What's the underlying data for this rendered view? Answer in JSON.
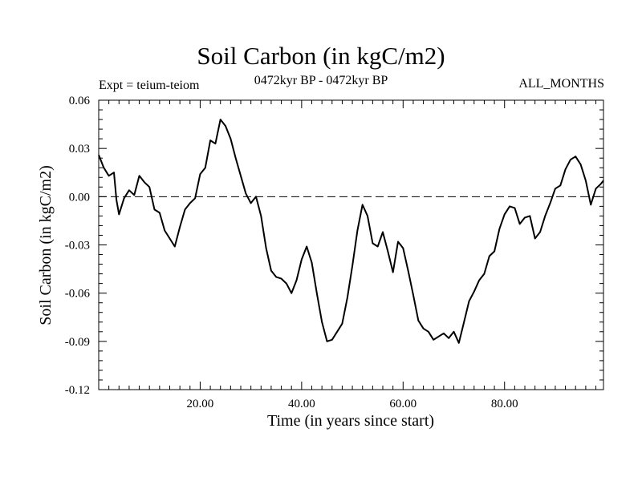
{
  "header": {
    "expt": "Expt = teium-teiom",
    "period": "0472kyr BP - 0472kyr BP",
    "months": "ALL_MONTHS"
  },
  "chart_data": {
    "type": "line",
    "title": "Soil Carbon (in kgC/m2)",
    "xlabel": "Time (in years since start)",
    "ylabel": "Soil Carbon (in kgC/m2)",
    "xlim": [
      0,
      99.5
    ],
    "ylim": [
      -0.12,
      0.06
    ],
    "x_ticks": [
      20,
      40,
      60,
      80
    ],
    "x_tick_labels": [
      "20.00",
      "40.00",
      "60.00",
      "80.00"
    ],
    "y_ticks": [
      0.06,
      0.03,
      0.0,
      -0.03,
      -0.06,
      -0.09,
      -0.12
    ],
    "y_tick_labels": [
      "0.06",
      "0.03",
      "0.00",
      "-0.03",
      "-0.06",
      "-0.09",
      "-0.12"
    ],
    "reference_line": 0.0,
    "grid": false,
    "series": [
      {
        "name": "Soil Carbon",
        "x": [
          0,
          1,
          2,
          3,
          3.5,
          4,
          5,
          6,
          7,
          8,
          9,
          10,
          11,
          12,
          13,
          14,
          15,
          16,
          17,
          18,
          19,
          20,
          21,
          22,
          23,
          24,
          25,
          26,
          27,
          28,
          29,
          30,
          31,
          32,
          33,
          34,
          35,
          36,
          37,
          38,
          39,
          40,
          41,
          42,
          43,
          44,
          45,
          46,
          47,
          48,
          49,
          50,
          51,
          52,
          53,
          54,
          55,
          56,
          57,
          58,
          59,
          60,
          61,
          62,
          63,
          64,
          65,
          66,
          67,
          68,
          69,
          70,
          71,
          72,
          73,
          74,
          75,
          76,
          77,
          78,
          79,
          80,
          81,
          82,
          83,
          84,
          85,
          86,
          87,
          88,
          89,
          90,
          91,
          92,
          93,
          94,
          95,
          96,
          97,
          98,
          99,
          99.5
        ],
        "values": [
          0.026,
          0.018,
          0.013,
          0.015,
          -0.002,
          -0.011,
          -0.001,
          0.004,
          0.001,
          0.013,
          0.009,
          0.006,
          -0.008,
          -0.01,
          -0.021,
          -0.026,
          -0.031,
          -0.019,
          -0.008,
          -0.004,
          -0.001,
          0.014,
          0.018,
          0.035,
          0.033,
          0.048,
          0.044,
          0.036,
          0.024,
          0.013,
          0.002,
          -0.004,
          0.0,
          -0.012,
          -0.032,
          -0.046,
          -0.05,
          -0.051,
          -0.054,
          -0.06,
          -0.052,
          -0.039,
          -0.031,
          -0.041,
          -0.06,
          -0.078,
          -0.09,
          -0.089,
          -0.084,
          -0.079,
          -0.063,
          -0.043,
          -0.021,
          -0.005,
          -0.012,
          -0.029,
          -0.031,
          -0.022,
          -0.034,
          -0.047,
          -0.028,
          -0.032,
          -0.046,
          -0.061,
          -0.077,
          -0.082,
          -0.084,
          -0.089,
          -0.087,
          -0.085,
          -0.088,
          -0.084,
          -0.091,
          -0.078,
          -0.065,
          -0.059,
          -0.052,
          -0.048,
          -0.037,
          -0.034,
          -0.02,
          -0.011,
          -0.006,
          -0.007,
          -0.017,
          -0.013,
          -0.012,
          -0.026,
          -0.022,
          -0.012,
          -0.004,
          0.005,
          0.007,
          0.017,
          0.023,
          0.025,
          0.02,
          0.01,
          -0.005,
          0.005,
          0.008,
          0.01
        ]
      }
    ]
  }
}
